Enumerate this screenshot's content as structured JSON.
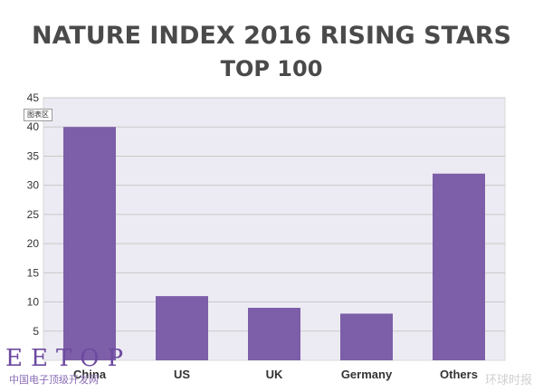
{
  "chart_data": {
    "type": "bar",
    "title": "NATURE INDEX 2016 RISING STARS",
    "subtitle": "TOP 100",
    "categories": [
      "China",
      "US",
      "UK",
      "Germany",
      "Others"
    ],
    "values": [
      40,
      11,
      9,
      8,
      32
    ],
    "xlabel": "",
    "ylabel": "",
    "ylim": [
      0,
      45
    ],
    "yticks": [
      5,
      10,
      15,
      20,
      25,
      30,
      35,
      40,
      45
    ],
    "grid": true,
    "legend": "none",
    "colors": {
      "bar": "#7d5ea8",
      "plot_bg": "#ecebf3",
      "grid": "#c9c9c9"
    }
  },
  "chart_tag": "图表区",
  "watermark": {
    "logo": "EETOP",
    "site": "中国电子顶级开发网",
    "source": "环球时报"
  }
}
